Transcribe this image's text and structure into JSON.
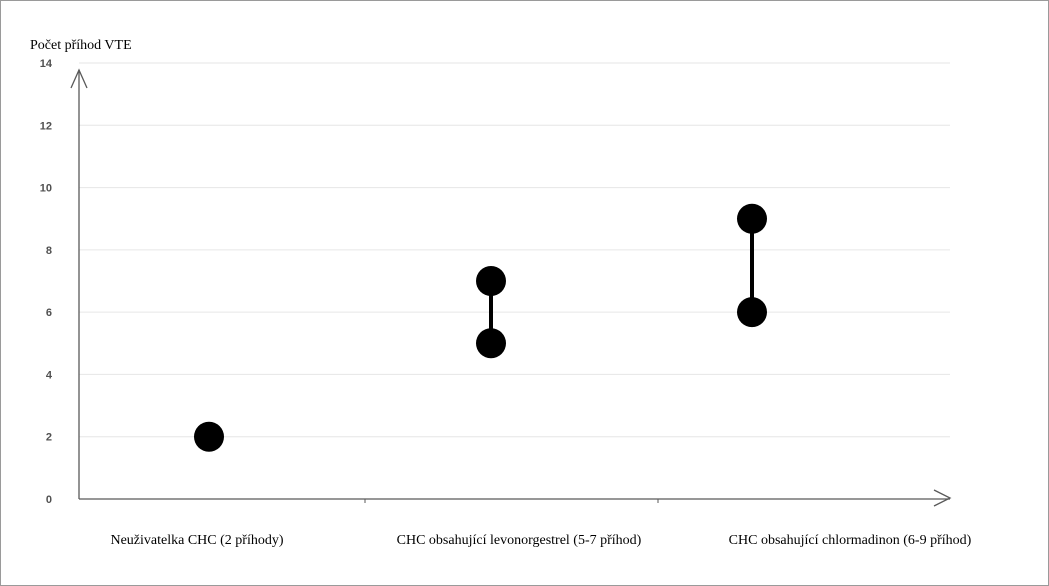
{
  "chart_data": {
    "type": "scatter",
    "ylabel": "Počet příhod VTE",
    "xlabel": "",
    "title": "",
    "ylim": [
      0,
      14
    ],
    "yticks": [
      0,
      2,
      4,
      6,
      8,
      10,
      12,
      14
    ],
    "grid": true,
    "categories": [
      "Neuživatelka CHC (2 příhody)",
      "CHC obsahující levonorgestrel (5-7 příhod)",
      "CHC obsahující chlormadinon (6-9 příhod)"
    ],
    "ranges": [
      {
        "category": "Neuživatelka CHC (2 příhody)",
        "low": 2,
        "high": 2
      },
      {
        "category": "CHC obsahující levonorgestrel (5-7 příhod)",
        "low": 5,
        "high": 7
      },
      {
        "category": "CHC obsahující chlormadinon (6-9 příhod)",
        "low": 6,
        "high": 9
      }
    ],
    "colors": {
      "marker": "#000000",
      "grid": "#e6e6e6",
      "axis": "#595959"
    }
  }
}
